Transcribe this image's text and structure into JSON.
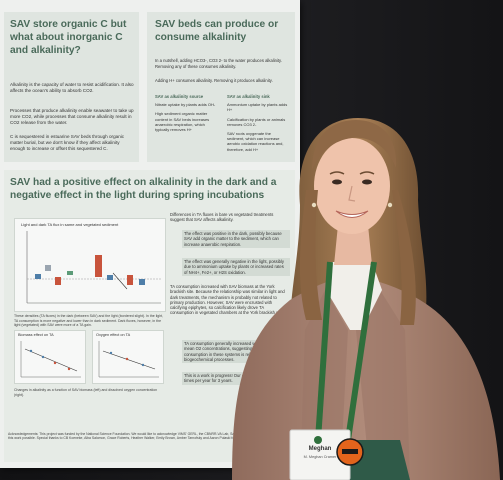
{
  "poster": {
    "panel1": {
      "title": "SAV store organic C but what about inorganic C and alkalinity?",
      "bullets": [
        "Alkalinity is the capacity of water to resist acidification. It also affects the ocean's ability to absorb CO2.",
        "Processes that produce alkalinity enable seawater to take up more CO2, while processes that consume alkalinity result in CO2 release from the water.",
        "C is sequestered in estuarine SAV beds through organic matter burial, but we don't know if they affect alkalinity enough to increase or offset this sequestered C."
      ]
    },
    "panel2": {
      "title": "SAV beds can produce or consume alkalinity",
      "intro_1": "In a nutshell, adding HCO3-, CO3 2- to the water produces alkalinity. Removing any of these consumes alkalinity.",
      "intro_2": "Adding H+ consumes alkalinity. Removing it produces alkalinity.",
      "source_header": "SAV as alkalinity source",
      "source_items": [
        "Nitrate uptake by plants adds OH-",
        "High sediment organic matter content in SAV beds increases anaerobic respiration, which typically removes H+"
      ],
      "sink_header": "SAV as alkalinity sink",
      "sink_items": [
        "Ammonium uptake by plants adds H+",
        "Calcification by plants or animals removes CO3 2-",
        "SAV roots oxygenate the sediment, which can increase aerobic oxidation reactions and, therefore, add H+"
      ]
    },
    "panel3": {
      "title": "SAV had a positive effect on alkalinity in the dark and a negative effect in the light during spring incubations",
      "chart_title": "Light and dark TA flux in same and vegetated sediment",
      "caption_1": "These densities (TA fluxes) in the dark (between SAV) and the light (bordered slight). In the light, TA consumption is more negative and lower than in dark sediment. Dark fluxes, however, in the light (vegetated) with SAV were more of a TA gain.",
      "sub1_title": "Biomass effect on TA",
      "sub2_title": "Oxygen effect on TA",
      "caption_2": "Changes in alkalinity as a function of SAV biomass (left) and dissolved oxygen concentration (right).",
      "right_bullets": [
        "Differences in TA fluxes in bare vs vegetated treatments suggest that SAV affects alkalinity.",
        "The effect was positive in the dark, possibly because SAV add organic matter to the sediment, which can increase anaerobic respiration.",
        "The effect was generally negative in the light, possibly due to ammonium uptake by plants or increased rates of NH4+, Fe2+, or H2S oxidation.",
        "TA consumption increased with SAV biomass at the York brackish site. Because the relationship was similar in light and dark treatments, the mechanism is probably not related to primary production. However, SAV were encrusted with calcifying epiphytes, so calcification likely drove TA consumption in vegetated chambers at the York brackish site.",
        "TA consumption generally increased with increasing mean O2 concentrations, suggesting that TA consumption in these systems is related to aerobic biogeochemical processes.",
        "This is a work in progress! Our group will be sampling 5 times per year for 3 years."
      ],
      "acknowledgements": "Acknowledgements: This project was funded by the National Science Foundation. We would like to acknowledge VIMS' GERL, the CBNRR-VA Lab, Sanjay Wyatt, and everyone who made this work possible. Special thanks to CB Koeneke, Alba Salomon, Grace Roberts, Heather Walker, Emily Brown, Amber Tarnofsky and Aaron Pulaski for their feedback and support."
    }
  },
  "badge": {
    "name": "Meghan",
    "line2": "M. Meghan Cramer"
  },
  "colors": {
    "poster_bg": "#eef0ee",
    "panel_bg": "#dfe5e0",
    "heading": "#4a6a5a",
    "jacket": "#a78271",
    "lanyard": "#2f6f3c",
    "button": "#e2641c"
  }
}
